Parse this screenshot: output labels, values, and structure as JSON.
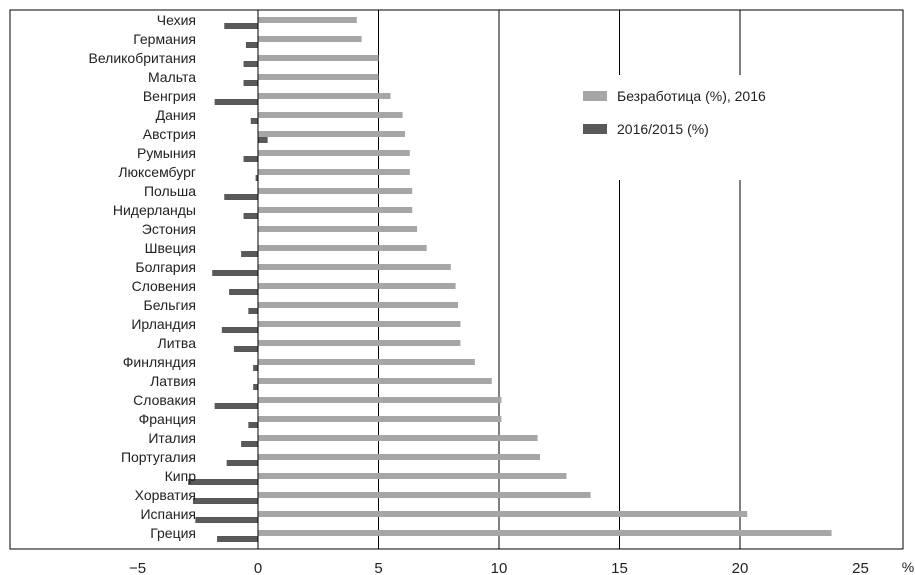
{
  "chart_data": {
    "type": "bar",
    "orientation": "horizontal",
    "categories": [
      "Чехия",
      "Германия",
      "Великобритания",
      "Мальта",
      "Венгрия",
      "Дания",
      "Австрия",
      "Румыния",
      "Люксембург",
      "Польша",
      "Нидерланды",
      "Эстония",
      "Швеция",
      "Болгария",
      "Словения",
      "Бельгия",
      "Ирландия",
      "Литва",
      "Финляндия",
      "Латвия",
      "Словакия",
      "Франция",
      "Италия",
      "Португалия",
      "Кипр",
      "Хорватия",
      "Испания",
      "Греция"
    ],
    "series": [
      {
        "name": "Безработица (%), 2016",
        "color": "#a6a6a6",
        "values": [
          4.1,
          4.3,
          5.0,
          5.0,
          5.5,
          6.0,
          6.1,
          6.3,
          6.3,
          6.4,
          6.4,
          6.6,
          7.0,
          8.0,
          8.2,
          8.3,
          8.4,
          8.4,
          9.0,
          9.7,
          10.1,
          10.1,
          11.6,
          11.7,
          12.8,
          13.8,
          20.3,
          23.8
        ]
      },
      {
        "name": "2016/2015 (%)",
        "color": "#595959",
        "values": [
          -1.4,
          -0.5,
          -0.6,
          -0.6,
          -1.8,
          -0.3,
          0.4,
          -0.6,
          -0.1,
          -1.4,
          -0.6,
          0.0,
          -0.7,
          -1.9,
          -1.2,
          -0.4,
          -1.5,
          -1.0,
          -0.2,
          -0.2,
          -1.8,
          -0.4,
          -0.7,
          -1.3,
          -2.9,
          -2.7,
          -2.6,
          -1.7
        ]
      }
    ],
    "xlim": [
      -5,
      25
    ],
    "xticks": [
      -5,
      0,
      5,
      10,
      15,
      20,
      25
    ],
    "x_unit": "%",
    "gridlines": [
      5,
      10,
      15,
      20
    ],
    "legend_position": "right",
    "title": "",
    "xlabel": "",
    "ylabel": ""
  }
}
